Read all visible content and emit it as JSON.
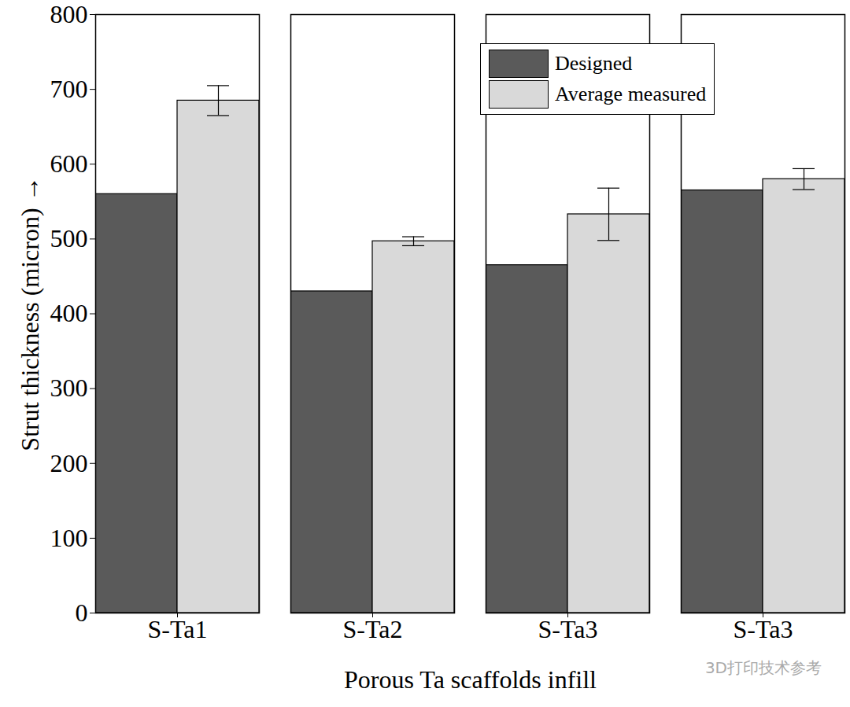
{
  "chart_data": {
    "type": "bar",
    "x_label": "Porous Ta scaffolds infill",
    "y_label": "Strut thickness (micron)",
    "categories": [
      "S-Ta1",
      "S-Ta2",
      "S-Ta3",
      "S-Ta3"
    ],
    "series": [
      {
        "name": "Designed",
        "color": "#5a5a5a",
        "values": [
          560,
          430,
          465,
          565
        ]
      },
      {
        "name": "Average measured",
        "color": "#d9d9d9",
        "values": [
          685,
          497,
          533,
          580
        ],
        "errors": [
          20,
          6,
          35,
          14
        ]
      }
    ],
    "ylim": [
      0,
      800
    ],
    "yticks": [
      0,
      100,
      200,
      300,
      400,
      500,
      600,
      700,
      800
    ],
    "legend": "top-right",
    "annotations": [
      "3D打印技术参考"
    ]
  }
}
